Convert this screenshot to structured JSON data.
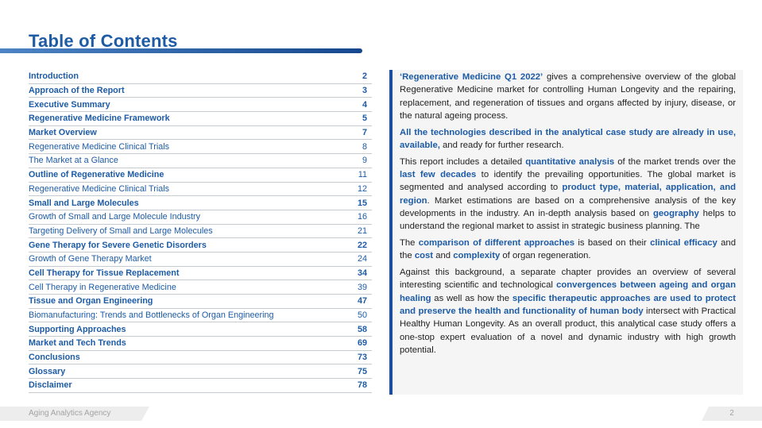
{
  "header": {
    "title": "Table of Contents"
  },
  "colors": {
    "accent_blue": "#1d5ba5",
    "side_bar_blue": "#1b4f9e",
    "rule_gradient_left": "#4c84c4",
    "rule_gradient_right": "#16478f",
    "panel_background": "#f5f5f6",
    "footer_background": "#ededee"
  },
  "toc": {
    "items": [
      {
        "label": "Introduction",
        "page": "2",
        "bold": true,
        "page_bold": true
      },
      {
        "label": "Approach of the Report",
        "page": "3",
        "bold": true,
        "page_bold": true
      },
      {
        "label": "Executive Summary",
        "page": "4",
        "bold": true,
        "page_bold": true
      },
      {
        "label": "Regenerative Medicine Framework",
        "page": "5",
        "bold": true,
        "page_bold": true
      },
      {
        "label": "Market Overview",
        "page": "7",
        "bold": true,
        "page_bold": true
      },
      {
        "label": "Regenerative Medicine Clinical Trials",
        "page": "8",
        "bold": false,
        "page_bold": false
      },
      {
        "label": "The Market at a Glance",
        "page": "9",
        "bold": false,
        "page_bold": false
      },
      {
        "label": "Outline of Regenerative Medicine",
        "page": "11",
        "bold": true,
        "page_bold": false
      },
      {
        "label": "Regenerative Medicine Clinical Trials",
        "page": "12",
        "bold": false,
        "page_bold": false
      },
      {
        "label": "Small and Large Molecules",
        "page": "15",
        "bold": true,
        "page_bold": true
      },
      {
        "label": "Growth of Small and Large Molecule Industry",
        "page": "16",
        "bold": false,
        "page_bold": false
      },
      {
        "label": "Targeting Delivery of Small and Large Molecules",
        "page": "21",
        "bold": false,
        "page_bold": false
      },
      {
        "label": "Gene Therapy for Severe Genetic Disorders",
        "page": "22",
        "bold": true,
        "page_bold": true
      },
      {
        "label": "Growth of Gene Therapy Market",
        "page": "24",
        "bold": false,
        "page_bold": false
      },
      {
        "label": "Cell Therapy for Tissue Replacement",
        "page": "34",
        "bold": true,
        "page_bold": true
      },
      {
        "label": "Cell Therapy in Regenerative Medicine",
        "page": "39",
        "bold": false,
        "page_bold": false
      },
      {
        "label": "Tissue and Organ Engineering",
        "page": "47",
        "bold": true,
        "page_bold": true
      },
      {
        "label": "Biomanufacturing: Trends and Bottlenecks of Organ Engineering",
        "page": "50",
        "bold": false,
        "page_bold": false
      },
      {
        "label": "Supporting Approaches",
        "page": "58",
        "bold": true,
        "page_bold": true
      },
      {
        "label": "Market and Tech Trends",
        "page": "69",
        "bold": true,
        "page_bold": true
      },
      {
        "label": "Conclusions",
        "page": "73",
        "bold": true,
        "page_bold": true
      },
      {
        "label": "Glossary",
        "page": "75",
        "bold": true,
        "page_bold": true
      },
      {
        "label": "Disclaimer",
        "page": "78",
        "bold": true,
        "page_bold": true
      }
    ]
  },
  "overview": {
    "paragraphs": [
      {
        "segments": [
          {
            "text": "‘Regenerative Medicine Q1 2022’",
            "highlight": true
          },
          {
            "text": " gives a comprehensive overview of the global Regenerative Medicine market for controlling Human Longevity and the repairing, replacement, and regeneration of tissues and organs affected by injury, disease, or the natural ageing process.",
            "highlight": false
          }
        ]
      },
      {
        "segments": [
          {
            "text": "All the technologies described in the analytical case study are already in use, available,",
            "highlight": true
          },
          {
            "text": " and ready for further research.",
            "highlight": false
          }
        ]
      },
      {
        "segments": [
          {
            "text": "This report includes a detailed ",
            "highlight": false
          },
          {
            "text": "quantitative analysis",
            "highlight": true
          },
          {
            "text": " of the market trends over the ",
            "highlight": false
          },
          {
            "text": "last few decades",
            "highlight": true
          },
          {
            "text": " to identify the prevailing opportunities. The global market is segmented and analysed according to ",
            "highlight": false
          },
          {
            "text": "product type, material, application, and region",
            "highlight": true
          },
          {
            "text": ". Market estimations are based on a comprehensive analysis of the key developments in the industry. An in-depth analysis based on ",
            "highlight": false
          },
          {
            "text": "geography",
            "highlight": true
          },
          {
            "text": " helps to understand the regional market to assist in strategic business planning. The",
            "highlight": false
          }
        ]
      },
      {
        "segments": [
          {
            "text": "The ",
            "highlight": false
          },
          {
            "text": "comparison of different approaches",
            "highlight": true
          },
          {
            "text": " is based on their ",
            "highlight": false
          },
          {
            "text": "clinical efficacy",
            "highlight": true
          },
          {
            "text": " and the ",
            "highlight": false
          },
          {
            "text": "cost",
            "highlight": true
          },
          {
            "text": " and ",
            "highlight": false
          },
          {
            "text": "complexity",
            "highlight": true
          },
          {
            "text": " of organ regeneration.",
            "highlight": false
          }
        ]
      },
      {
        "segments": [
          {
            "text": "Against this background, a separate chapter provides an overview of several interesting scientific and technological ",
            "highlight": false
          },
          {
            "text": "convergences between ageing and organ healing",
            "highlight": true
          },
          {
            "text": " as well as how the ",
            "highlight": false
          },
          {
            "text": "specific therapeutic approaches are used to protect and preserve the health and functionality of human body",
            "highlight": true
          },
          {
            "text": " intersect with Practical Healthy Human Longevity. As an overall product, this analytical case study offers a one-stop expert evaluation of a novel and dynamic industry with high growth potential.",
            "highlight": false
          }
        ]
      }
    ]
  },
  "footer": {
    "company": "Aging Analytics Agency",
    "page_number": "2"
  }
}
